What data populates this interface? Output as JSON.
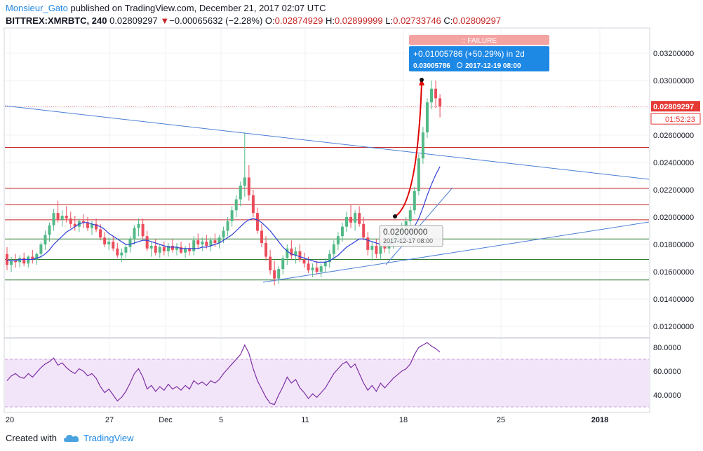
{
  "header": {
    "author": "Monsieur_Gato",
    "published": " published on TradingView.com, December 21, 2017 02:07 UTC",
    "symbol": "BITTREX:XMRBTC, 240",
    "last": "0.02809297",
    "arrow": "▼",
    "change": "−0.00065632 (−2.28%)",
    "o_label": "O:",
    "o_val": "0.02874929",
    "h_label": "H:",
    "h_val": "0.02899999",
    "l_label": "L:",
    "l_val": "0.02733746",
    "c_label": "C:",
    "c_val": "0.02809297"
  },
  "footer": {
    "created": "Created with",
    "brand": "TradingView"
  },
  "colors": {
    "up": "#53b987",
    "down": "#eb4d5c",
    "ma": "#2f3fd8",
    "rsi": "#7e2fa6",
    "hline_red": "#c62828",
    "hline_green": "#2e7d32",
    "trend": "#4a7fd4",
    "accent": "#1e88e5"
  },
  "chart_data": {
    "type": "candlestick",
    "price_axis": {
      "ticks": [
        "0.03200000",
        "0.03000000",
        "0.02800000",
        "0.02600000",
        "0.02400000",
        "0.02200000",
        "0.02000000",
        "0.01800000",
        "0.01600000",
        "0.01400000",
        "0.01200000"
      ],
      "ylim": [
        0.011,
        0.0325
      ]
    },
    "x_ticks": [
      "20",
      "27",
      "Dec",
      "5",
      "11",
      "18",
      "25",
      "2018"
    ],
    "last_price": "0.02809297",
    "countdown": "01:52:23",
    "horizontal_levels": [
      {
        "price": 0.0251,
        "color": "red"
      },
      {
        "price": 0.0221,
        "color": "red"
      },
      {
        "price": 0.0209,
        "color": "red"
      },
      {
        "price": 0.0198,
        "color": "red"
      },
      {
        "price": 0.0184,
        "color": "green"
      },
      {
        "price": 0.0169,
        "color": "green"
      },
      {
        "price": 0.0154,
        "color": "green"
      }
    ],
    "projection": {
      "status": "FAILURE",
      "label": "+0.01005786 (+50.29%) in 2d",
      "target": "0.03005786",
      "target_date": "2017-12-19  08:00",
      "start": "0.02000000",
      "start_date": "2017-12-17 08:00"
    },
    "rsi": {
      "ticks": [
        "80.0000",
        "60.0000",
        "40.0000"
      ],
      "overbought": 70,
      "oversold": 30
    },
    "candles": [
      [
        0.0173,
        0.0178,
        0.0161,
        0.0165
      ],
      [
        0.0165,
        0.0171,
        0.016,
        0.0168
      ],
      [
        0.0168,
        0.0173,
        0.0163,
        0.0167
      ],
      [
        0.0167,
        0.0172,
        0.0163,
        0.017
      ],
      [
        0.017,
        0.0174,
        0.0164,
        0.0166
      ],
      [
        0.0166,
        0.0172,
        0.0163,
        0.0171
      ],
      [
        0.0171,
        0.0176,
        0.0166,
        0.0169
      ],
      [
        0.0169,
        0.0174,
        0.0165,
        0.0173
      ],
      [
        0.0173,
        0.0182,
        0.017,
        0.018
      ],
      [
        0.018,
        0.019,
        0.0176,
        0.0187
      ],
      [
        0.0187,
        0.0196,
        0.0182,
        0.0194
      ],
      [
        0.0194,
        0.0206,
        0.019,
        0.0203
      ],
      [
        0.0203,
        0.0212,
        0.0196,
        0.0198
      ],
      [
        0.0198,
        0.0205,
        0.0193,
        0.0201
      ],
      [
        0.0201,
        0.0208,
        0.0196,
        0.0199
      ],
      [
        0.0199,
        0.0204,
        0.0192,
        0.0195
      ],
      [
        0.0195,
        0.0201,
        0.019,
        0.0193
      ],
      [
        0.0193,
        0.0199,
        0.0189,
        0.0197
      ],
      [
        0.0197,
        0.0202,
        0.0192,
        0.0196
      ],
      [
        0.0196,
        0.02,
        0.019,
        0.0192
      ],
      [
        0.0192,
        0.0197,
        0.0187,
        0.0195
      ],
      [
        0.0195,
        0.0199,
        0.0189,
        0.0191
      ],
      [
        0.0191,
        0.0195,
        0.0183,
        0.0185
      ],
      [
        0.0185,
        0.0189,
        0.0178,
        0.018
      ],
      [
        0.018,
        0.0185,
        0.0176,
        0.0182
      ],
      [
        0.0182,
        0.0186,
        0.0175,
        0.0177
      ],
      [
        0.0177,
        0.0181,
        0.017,
        0.0172
      ],
      [
        0.0172,
        0.0177,
        0.0167,
        0.0174
      ],
      [
        0.0174,
        0.018,
        0.017,
        0.0178
      ],
      [
        0.0178,
        0.0186,
        0.0174,
        0.0184
      ],
      [
        0.0184,
        0.0194,
        0.018,
        0.0192
      ],
      [
        0.0192,
        0.0199,
        0.0186,
        0.0195
      ],
      [
        0.0195,
        0.0199,
        0.0184,
        0.0186
      ],
      [
        0.0186,
        0.019,
        0.0175,
        0.0177
      ],
      [
        0.0177,
        0.0182,
        0.0171,
        0.0179
      ],
      [
        0.0179,
        0.0184,
        0.0172,
        0.0174
      ],
      [
        0.0174,
        0.018,
        0.017,
        0.0178
      ],
      [
        0.0178,
        0.0182,
        0.0172,
        0.0175
      ],
      [
        0.0175,
        0.0181,
        0.0171,
        0.0179
      ],
      [
        0.0179,
        0.0184,
        0.0174,
        0.0176
      ],
      [
        0.0176,
        0.0181,
        0.0172,
        0.0178
      ],
      [
        0.0178,
        0.0182,
        0.0173,
        0.0174
      ],
      [
        0.0174,
        0.0179,
        0.017,
        0.0177
      ],
      [
        0.0177,
        0.0181,
        0.0172,
        0.0175
      ],
      [
        0.0175,
        0.0186,
        0.0172,
        0.0183
      ],
      [
        0.0183,
        0.0188,
        0.0177,
        0.018
      ],
      [
        0.018,
        0.0185,
        0.0175,
        0.0182
      ],
      [
        0.0182,
        0.0187,
        0.0177,
        0.0179
      ],
      [
        0.0179,
        0.0185,
        0.0175,
        0.0183
      ],
      [
        0.0183,
        0.0188,
        0.0178,
        0.0181
      ],
      [
        0.0181,
        0.0187,
        0.0177,
        0.0185
      ],
      [
        0.0185,
        0.0193,
        0.0181,
        0.019
      ],
      [
        0.019,
        0.02,
        0.0186,
        0.0197
      ],
      [
        0.0197,
        0.0208,
        0.0193,
        0.0205
      ],
      [
        0.0205,
        0.0216,
        0.02,
        0.0213
      ],
      [
        0.0213,
        0.0226,
        0.0208,
        0.0223
      ],
      [
        0.0223,
        0.0262,
        0.0215,
        0.0229
      ],
      [
        0.0229,
        0.0238,
        0.0212,
        0.0216
      ],
      [
        0.0216,
        0.022,
        0.02,
        0.0203
      ],
      [
        0.0203,
        0.0207,
        0.0188,
        0.019
      ],
      [
        0.019,
        0.0195,
        0.0178,
        0.0181
      ],
      [
        0.0181,
        0.0186,
        0.0168,
        0.0171
      ],
      [
        0.0171,
        0.0176,
        0.0158,
        0.0161
      ],
      [
        0.0161,
        0.0168,
        0.015,
        0.0155
      ],
      [
        0.0155,
        0.0164,
        0.0151,
        0.0162
      ],
      [
        0.0162,
        0.0172,
        0.0158,
        0.017
      ],
      [
        0.017,
        0.018,
        0.0165,
        0.0177
      ],
      [
        0.0177,
        0.0183,
        0.0169,
        0.0172
      ],
      [
        0.0172,
        0.0178,
        0.0166,
        0.0175
      ],
      [
        0.0175,
        0.018,
        0.0167,
        0.0169
      ],
      [
        0.0169,
        0.0174,
        0.0163,
        0.0166
      ],
      [
        0.0166,
        0.0171,
        0.0159,
        0.0161
      ],
      [
        0.0161,
        0.0166,
        0.0156,
        0.0163
      ],
      [
        0.0163,
        0.0168,
        0.0158,
        0.016
      ],
      [
        0.016,
        0.0166,
        0.0156,
        0.0164
      ],
      [
        0.0164,
        0.017,
        0.016,
        0.0167
      ],
      [
        0.0167,
        0.0176,
        0.0163,
        0.0173
      ],
      [
        0.0173,
        0.0183,
        0.0169,
        0.018
      ],
      [
        0.018,
        0.0189,
        0.0176,
        0.0186
      ],
      [
        0.0186,
        0.0196,
        0.0182,
        0.0193
      ],
      [
        0.0193,
        0.0204,
        0.0189,
        0.02
      ],
      [
        0.02,
        0.0209,
        0.0192,
        0.0196
      ],
      [
        0.0196,
        0.0205,
        0.019,
        0.0203
      ],
      [
        0.0203,
        0.0208,
        0.0193,
        0.0195
      ],
      [
        0.0195,
        0.02,
        0.0183,
        0.0185
      ],
      [
        0.0185,
        0.0189,
        0.0172,
        0.0176
      ],
      [
        0.0176,
        0.0182,
        0.0168,
        0.0179
      ],
      [
        0.0179,
        0.0184,
        0.017,
        0.0173
      ],
      [
        0.0173,
        0.0182,
        0.0169,
        0.018
      ],
      [
        0.018,
        0.0186,
        0.0174,
        0.0177
      ],
      [
        0.0177,
        0.0184,
        0.0173,
        0.0182
      ],
      [
        0.0182,
        0.0188,
        0.0177,
        0.0185
      ],
      [
        0.0185,
        0.0192,
        0.018,
        0.0189
      ],
      [
        0.0189,
        0.0196,
        0.0185,
        0.0193
      ],
      [
        0.0193,
        0.02,
        0.0189,
        0.0197
      ],
      [
        0.0197,
        0.0208,
        0.0193,
        0.0205
      ],
      [
        0.0205,
        0.0222,
        0.0202,
        0.0219
      ],
      [
        0.0219,
        0.0246,
        0.0216,
        0.0243
      ],
      [
        0.0243,
        0.0266,
        0.0239,
        0.0262
      ],
      [
        0.0262,
        0.0287,
        0.0258,
        0.0284
      ],
      [
        0.0284,
        0.03,
        0.0279,
        0.0294
      ],
      [
        0.0294,
        0.03,
        0.028,
        0.0287
      ],
      [
        0.0287,
        0.029,
        0.0273,
        0.0281
      ]
    ],
    "ma": [
      0.0168,
      0.0168,
      0.0168,
      0.0169,
      0.0169,
      0.0169,
      0.0169,
      0.017,
      0.0171,
      0.0173,
      0.0176,
      0.018,
      0.0183,
      0.0186,
      0.0189,
      0.0191,
      0.0193,
      0.0195,
      0.0196,
      0.0196,
      0.0195,
      0.0194,
      0.0193,
      0.0191,
      0.0188,
      0.0186,
      0.0184,
      0.0182,
      0.018,
      0.018,
      0.0181,
      0.0182,
      0.0183,
      0.0183,
      0.0182,
      0.0181,
      0.018,
      0.0179,
      0.0178,
      0.0178,
      0.0178,
      0.0177,
      0.0177,
      0.0177,
      0.0177,
      0.0177,
      0.0178,
      0.0178,
      0.0179,
      0.018,
      0.0181,
      0.0183,
      0.0185,
      0.0187,
      0.019,
      0.0193,
      0.0196,
      0.0198,
      0.0199,
      0.0198,
      0.0196,
      0.0193,
      0.019,
      0.0186,
      0.0182,
      0.0178,
      0.0175,
      0.0173,
      0.0172,
      0.0171,
      0.017,
      0.0169,
      0.0168,
      0.0167,
      0.0167,
      0.0167,
      0.0168,
      0.017,
      0.0172,
      0.0175,
      0.0178,
      0.018,
      0.0182,
      0.0184,
      0.0184,
      0.0183,
      0.0182,
      0.0181,
      0.018,
      0.018,
      0.018,
      0.0181,
      0.0182,
      0.0184,
      0.0186,
      0.0189,
      0.0193,
      0.0199,
      0.0207,
      0.0216,
      0.0224,
      0.0231,
      0.0237
    ],
    "rsi_values": [
      52,
      56,
      58,
      55,
      54,
      58,
      55,
      59,
      63,
      66,
      68,
      71,
      65,
      67,
      63,
      60,
      58,
      62,
      60,
      56,
      58,
      54,
      47,
      42,
      45,
      40,
      35,
      38,
      43,
      50,
      58,
      62,
      55,
      45,
      48,
      43,
      47,
      44,
      49,
      45,
      47,
      44,
      48,
      45,
      52,
      49,
      51,
      48,
      52,
      50,
      53,
      58,
      62,
      66,
      70,
      74,
      82,
      75,
      62,
      52,
      45,
      38,
      33,
      32,
      40,
      47,
      55,
      50,
      53,
      46,
      42,
      37,
      41,
      38,
      42,
      46,
      52,
      58,
      62,
      66,
      68,
      63,
      66,
      58,
      50,
      44,
      48,
      43,
      50,
      46,
      50,
      54,
      57,
      60,
      62,
      66,
      74,
      80,
      82,
      84,
      81,
      79,
      76
    ]
  }
}
